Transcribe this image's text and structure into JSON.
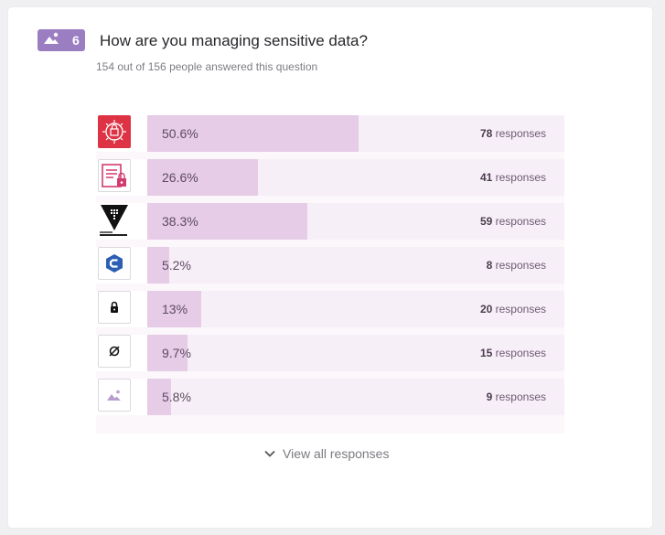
{
  "question": {
    "number": "6",
    "icon": "image-icon",
    "title": "How are you managing sensitive data?",
    "subtitle": "154 out of 156 people answered this question"
  },
  "responses_word": "responses",
  "answers": [
    {
      "icon": "red-vault-logo-icon",
      "percent_label": "50.6%",
      "percent": 50.6,
      "count": "78",
      "color": "#dd3344"
    },
    {
      "icon": "locked-document-pink-icon",
      "percent_label": "26.6%",
      "percent": 26.6,
      "count": "41",
      "color": "#d23b6e"
    },
    {
      "icon": "black-triangle-vault-logo-icon",
      "percent_label": "38.3%",
      "percent": 38.3,
      "count": "59",
      "color": "#111111"
    },
    {
      "icon": "blue-c-logo-icon",
      "percent_label": "5.2%",
      "percent": 5.2,
      "count": "8",
      "color": "#2b5fb3"
    },
    {
      "icon": "padlock-icon",
      "percent_label": "13%",
      "percent": 13,
      "count": "20",
      "color": "#111111"
    },
    {
      "icon": "circle-slash-icon",
      "percent_label": "9.7%",
      "percent": 9.7,
      "count": "15",
      "color": "#111111"
    },
    {
      "icon": "image-placeholder-icon",
      "percent_label": "5.8%",
      "percent": 5.8,
      "count": "9",
      "color": "#b89cd0"
    }
  ],
  "footer": {
    "view_all_label": "View all responses",
    "icon": "chevron-down-icon"
  },
  "colors": {
    "accent": "#9b7ec2",
    "bar_track": "#f7eff7",
    "bar_fill": "#e6cce6"
  }
}
